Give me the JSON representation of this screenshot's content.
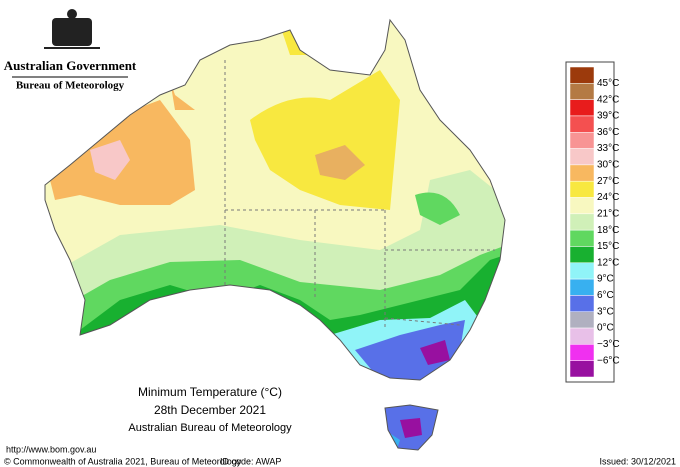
{
  "header": {
    "government": "Australian Government",
    "bureau": "Bureau of Meteorology"
  },
  "title": {
    "line1": "Minimum Temperature (°C)",
    "line2": "28th December 2021",
    "line3": "Australian Bureau of Meteorology"
  },
  "legend": {
    "colors": [
      "#9c3a0c",
      "#b47a44",
      "#e81c1c",
      "#f45050",
      "#f89494",
      "#f8c8c8",
      "#f8b860",
      "#f8e840",
      "#f8f8c0",
      "#d0f0b8",
      "#60d860",
      "#18b030",
      "#90f4f8",
      "#38b0f0",
      "#5870e8",
      "#b0b0c0",
      "#e8c0e8",
      "#f030f0",
      "#9810a0"
    ],
    "labels": [
      "45°C",
      "42°C",
      "39°C",
      "36°C",
      "33°C",
      "30°C",
      "27°C",
      "24°C",
      "21°C",
      "18°C",
      "15°C",
      "12°C",
      "9°C",
      "6°C",
      "3°C",
      "0°C",
      "−3°C",
      "−6°C"
    ]
  },
  "footer": {
    "url": "http://www.bom.gov.au",
    "copyright": "© Commonwealth of Australia 2021, Bureau of Meteorology",
    "id_code": "ID code: AWAP",
    "issued": "Issued: 30/12/2021"
  }
}
